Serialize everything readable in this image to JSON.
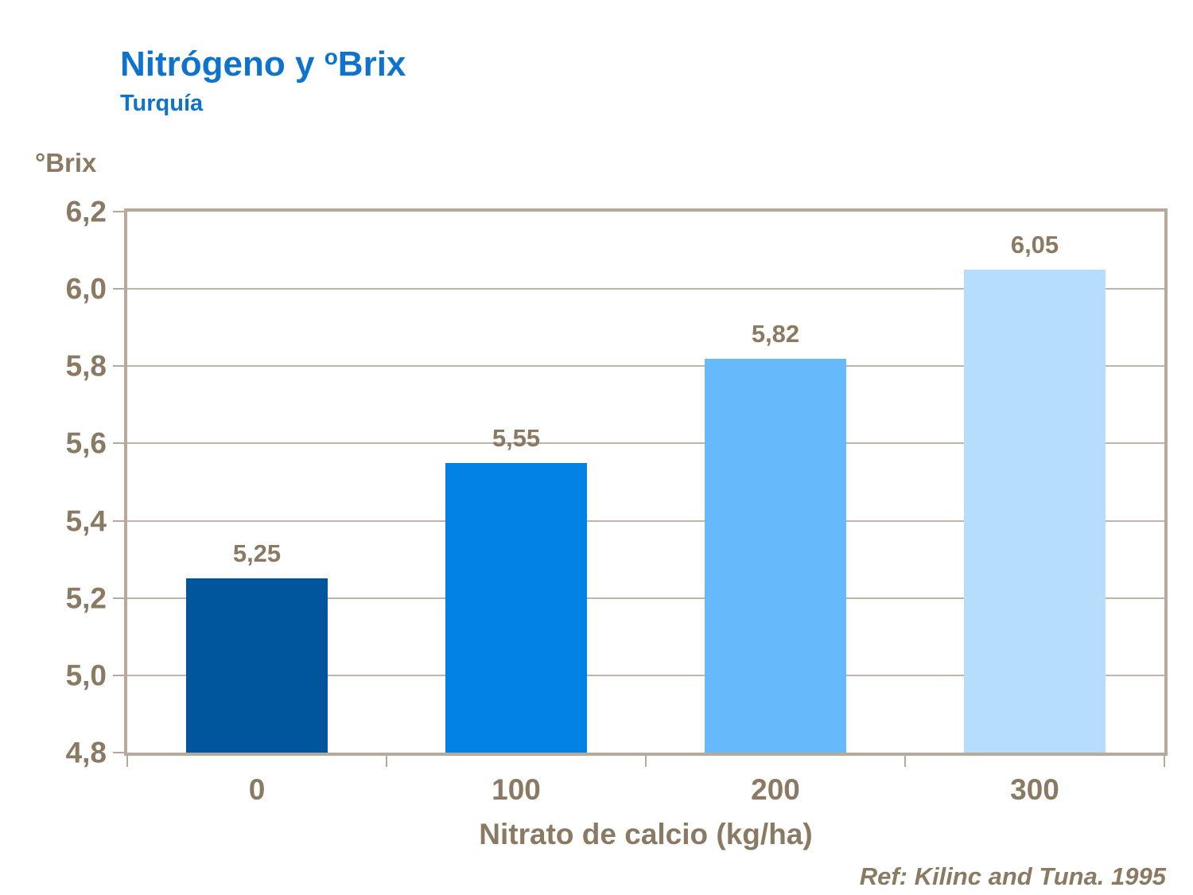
{
  "header": {
    "title_main": "Nitrógeno y ",
    "title_sup": "o",
    "title_tail": "Brix",
    "subtitle": "Turquía"
  },
  "footer": {
    "reference": "Ref: Kilinc and Tuna. 1995"
  },
  "colors": {
    "title_blue": "#0E73CC",
    "text_brown": "#8A7A63",
    "gridline": "#BFB5A7",
    "axis_border": "#B5AA9C",
    "background": "#FFFFFF"
  },
  "chart_data": {
    "type": "bar",
    "title": "Nitrógeno y ºBrix",
    "subtitle": "Turquía",
    "ylabel": "°Brix",
    "xlabel": "Nitrato de calcio (kg/ha)",
    "ylim": [
      4.8,
      6.2
    ],
    "grid": true,
    "legend": false,
    "categories": [
      "0",
      "100",
      "200",
      "300"
    ],
    "values": [
      5.25,
      5.55,
      5.82,
      6.05
    ],
    "value_labels": [
      "5,25",
      "5,55",
      "5,82",
      "6,05"
    ],
    "bar_colors": [
      "#00569D",
      "#0282E4",
      "#66BAFB",
      "#B7DDFC"
    ],
    "bar_width_fraction": 0.136,
    "yticks": [
      {
        "value": 4.8,
        "label": "4,8"
      },
      {
        "value": 5.0,
        "label": "5,0"
      },
      {
        "value": 5.2,
        "label": "5,2"
      },
      {
        "value": 5.4,
        "label": "5,4"
      },
      {
        "value": 5.6,
        "label": "5,6"
      },
      {
        "value": 5.8,
        "label": "5,8"
      },
      {
        "value": 6.0,
        "label": "6,0"
      },
      {
        "value": 6.2,
        "label": "6,2"
      }
    ]
  }
}
